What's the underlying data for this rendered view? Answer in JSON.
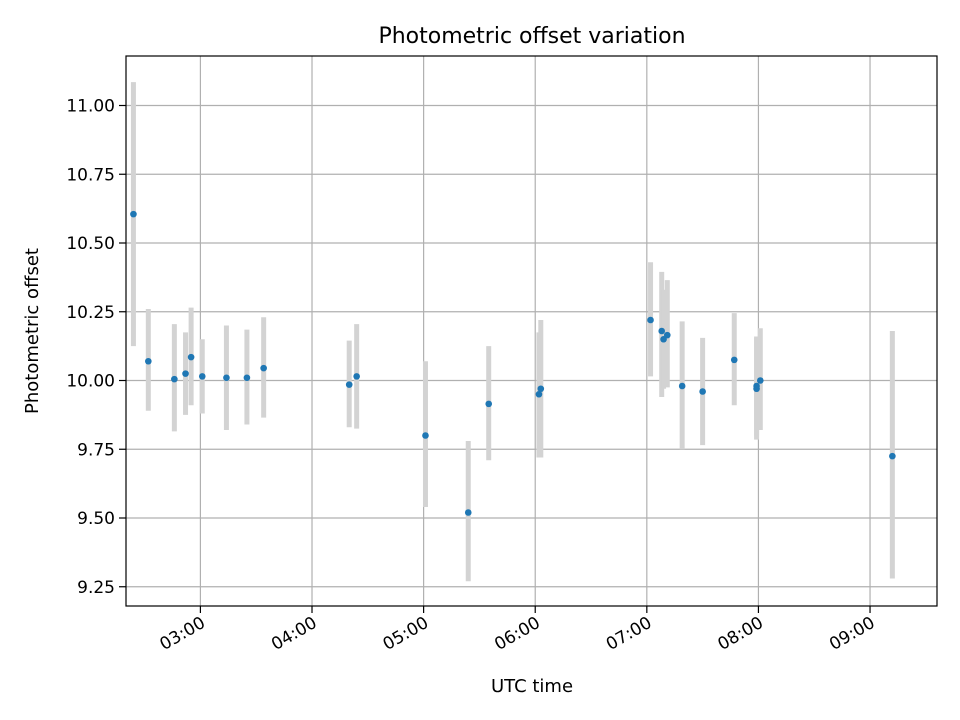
{
  "chart_data": {
    "type": "scatter",
    "title": "Photometric offset variation",
    "xlabel": "UTC time",
    "ylabel": "Photometric offset",
    "x_format": "HH:MM",
    "xlim": [
      "02:20",
      "09:36"
    ],
    "ylim": [
      9.18,
      11.18
    ],
    "xticks": [
      "03:00",
      "04:00",
      "05:00",
      "06:00",
      "07:00",
      "08:00",
      "09:00"
    ],
    "yticks": [
      "9.25",
      "9.50",
      "9.75",
      "10.00",
      "10.25",
      "10.50",
      "10.75",
      "11.00"
    ],
    "grid": true,
    "legend": "none",
    "marker_color": "#1f77b4",
    "errorbar_color": "#d3d3d3",
    "points": [
      {
        "x": "02:24",
        "y": 10.605,
        "ylo": 10.125,
        "yhi": 11.085
      },
      {
        "x": "02:32",
        "y": 10.07,
        "ylo": 9.89,
        "yhi": 10.26
      },
      {
        "x": "02:46",
        "y": 10.005,
        "ylo": 9.815,
        "yhi": 10.205
      },
      {
        "x": "02:52",
        "y": 10.025,
        "ylo": 9.875,
        "yhi": 10.175
      },
      {
        "x": "02:55",
        "y": 10.085,
        "ylo": 9.91,
        "yhi": 10.265
      },
      {
        "x": "03:01",
        "y": 10.015,
        "ylo": 9.88,
        "yhi": 10.15
      },
      {
        "x": "03:14",
        "y": 10.01,
        "ylo": 9.82,
        "yhi": 10.2
      },
      {
        "x": "03:25",
        "y": 10.01,
        "ylo": 9.84,
        "yhi": 10.185
      },
      {
        "x": "03:34",
        "y": 10.045,
        "ylo": 9.865,
        "yhi": 10.23
      },
      {
        "x": "04:20",
        "y": 9.985,
        "ylo": 9.83,
        "yhi": 10.145
      },
      {
        "x": "04:24",
        "y": 10.015,
        "ylo": 9.825,
        "yhi": 10.205
      },
      {
        "x": "05:01",
        "y": 9.8,
        "ylo": 9.54,
        "yhi": 10.07
      },
      {
        "x": "05:24",
        "y": 9.52,
        "ylo": 9.27,
        "yhi": 9.78
      },
      {
        "x": "05:35",
        "y": 9.915,
        "ylo": 9.71,
        "yhi": 10.125
      },
      {
        "x": "06:02",
        "y": 9.95,
        "ylo": 9.72,
        "yhi": 10.175
      },
      {
        "x": "06:03",
        "y": 9.97,
        "ylo": 9.72,
        "yhi": 10.22
      },
      {
        "x": "07:02",
        "y": 10.22,
        "ylo": 10.015,
        "yhi": 10.43
      },
      {
        "x": "07:08",
        "y": 10.18,
        "ylo": 9.94,
        "yhi": 10.395
      },
      {
        "x": "07:09",
        "y": 10.15,
        "ylo": 9.97,
        "yhi": 10.33
      },
      {
        "x": "07:11",
        "y": 10.165,
        "ylo": 9.975,
        "yhi": 10.365
      },
      {
        "x": "07:19",
        "y": 9.98,
        "ylo": 9.75,
        "yhi": 10.215
      },
      {
        "x": "07:30",
        "y": 9.96,
        "ylo": 9.765,
        "yhi": 10.155
      },
      {
        "x": "07:47",
        "y": 10.075,
        "ylo": 9.91,
        "yhi": 10.245
      },
      {
        "x": "07:59",
        "y": 9.98,
        "ylo": 9.8,
        "yhi": 10.16
      },
      {
        "x": "07:59",
        "y": 9.97,
        "ylo": 9.785,
        "yhi": 10.155
      },
      {
        "x": "08:01",
        "y": 10.0,
        "ylo": 9.82,
        "yhi": 10.19
      },
      {
        "x": "09:12",
        "y": 9.725,
        "ylo": 9.28,
        "yhi": 10.18
      }
    ]
  }
}
